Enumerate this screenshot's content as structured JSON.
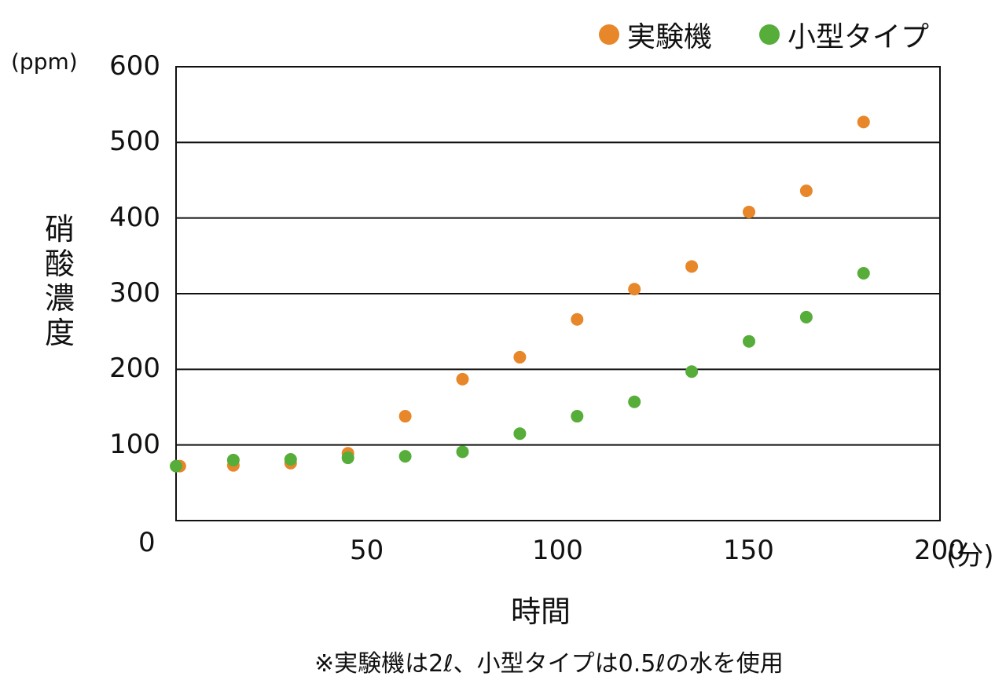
{
  "chart_data": {
    "type": "scatter",
    "xlabel": "時間",
    "ylabel": "硝酸濃度",
    "x_unit": "(分)",
    "y_unit": "(ppm)",
    "xlim": [
      0,
      200
    ],
    "ylim": [
      0,
      600
    ],
    "x_ticks": [
      "50",
      "100",
      "150",
      "200"
    ],
    "y_ticks": [
      "0",
      "100",
      "200",
      "300",
      "400",
      "500",
      "600"
    ],
    "grid": true,
    "legend_position": "top-right",
    "series": [
      {
        "name": "実験機",
        "color": "#E8862A",
        "points": [
          {
            "x": 1,
            "y": 72
          },
          {
            "x": 15,
            "y": 73
          },
          {
            "x": 30,
            "y": 76
          },
          {
            "x": 45,
            "y": 89
          },
          {
            "x": 60,
            "y": 138
          },
          {
            "x": 75,
            "y": 187
          },
          {
            "x": 90,
            "y": 216
          },
          {
            "x": 105,
            "y": 266
          },
          {
            "x": 120,
            "y": 306
          },
          {
            "x": 135,
            "y": 336
          },
          {
            "x": 150,
            "y": 408
          },
          {
            "x": 165,
            "y": 436
          },
          {
            "x": 180,
            "y": 527
          }
        ]
      },
      {
        "name": "小型タイプ",
        "color": "#56AD3A",
        "points": [
          {
            "x": 0,
            "y": 72
          },
          {
            "x": 15,
            "y": 80
          },
          {
            "x": 30,
            "y": 81
          },
          {
            "x": 45,
            "y": 83
          },
          {
            "x": 60,
            "y": 85
          },
          {
            "x": 75,
            "y": 91
          },
          {
            "x": 90,
            "y": 115
          },
          {
            "x": 105,
            "y": 138
          },
          {
            "x": 120,
            "y": 157
          },
          {
            "x": 135,
            "y": 197
          },
          {
            "x": 150,
            "y": 237
          },
          {
            "x": 165,
            "y": 269
          },
          {
            "x": 180,
            "y": 327
          }
        ]
      }
    ],
    "footnote": "※実験機は2ℓ、小型タイプは0.5ℓの水を使用"
  }
}
